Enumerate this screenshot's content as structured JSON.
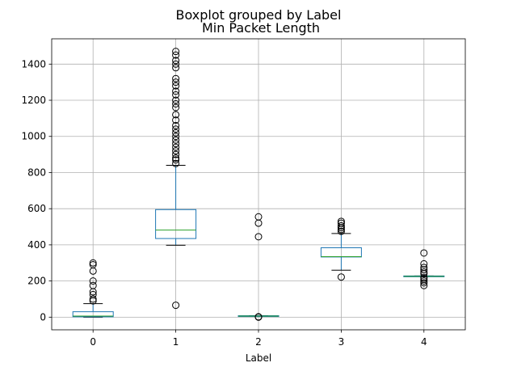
{
  "chart_data": {
    "type": "boxplot",
    "suptitle": "Boxplot grouped by Label",
    "title": "Min Packet Length",
    "xlabel": "Label",
    "ylabel": "",
    "ylim": [
      -70,
      1540
    ],
    "yticks": [
      0,
      200,
      400,
      600,
      800,
      1000,
      1200,
      1400
    ],
    "grid": true,
    "colors": {
      "box": "#1f77b4",
      "median": "#2ca02c",
      "cap": "#000000",
      "flier": "#000000",
      "grid": "#b0b0b0"
    },
    "categories": [
      "0",
      "1",
      "2",
      "3",
      "4"
    ],
    "boxes": [
      {
        "label": "0",
        "whisker_low": 0,
        "q1": 2,
        "median": 6,
        "q3": 30,
        "whisker_high": 75,
        "fliers": [
          90,
          100,
          125,
          140,
          175,
          200,
          255,
          290,
          300
        ]
      },
      {
        "label": "1",
        "whisker_low": 398,
        "q1": 435,
        "median": 482,
        "q3": 595,
        "whisker_high": 840,
        "fliers": [
          66,
          850,
          870,
          880,
          900,
          920,
          940,
          960,
          980,
          1000,
          1020,
          1040,
          1060,
          1090,
          1120,
          1160,
          1180,
          1200,
          1230,
          1250,
          1280,
          1300,
          1320,
          1380,
          1400,
          1420,
          1450,
          1470
        ]
      },
      {
        "label": "2",
        "whisker_low": 5,
        "q1": 6,
        "median": 6,
        "q3": 8,
        "whisker_high": 8,
        "fliers": [
          0,
          2,
          445,
          520,
          555
        ]
      },
      {
        "label": "3",
        "whisker_low": 260,
        "q1": 333,
        "median": 335,
        "q3": 384,
        "whisker_high": 463,
        "fliers": [
          222,
          475,
          485,
          495,
          505,
          520,
          530
        ]
      },
      {
        "label": "4",
        "whisker_low": 226,
        "q1": 226,
        "median": 226,
        "q3": 228,
        "whisker_high": 228,
        "fliers": [
          175,
          190,
          200,
          210,
          218,
          240,
          250,
          262,
          275,
          295,
          355
        ]
      }
    ]
  }
}
